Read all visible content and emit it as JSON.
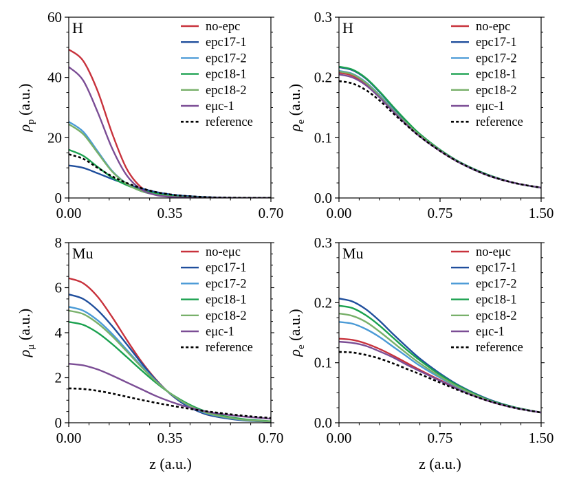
{
  "colors": {
    "no-epc": "#c8323c",
    "epc17-1": "#1f4e9c",
    "epc17-2": "#4a9ad6",
    "epc18-1": "#1aa14f",
    "epc18-2": "#78b06a",
    "emuc-1": "#7b4d95",
    "reference": "#000000"
  },
  "xlabel": "z (a.u.)",
  "chart_data": [
    {
      "type": "line",
      "panel_label": "H",
      "ylabel": "ρ",
      "ylabel_sub": "p",
      "ylabel_unit": " (a.u.)",
      "xlim": [
        0,
        0.7
      ],
      "ylim": [
        0,
        60
      ],
      "xticks": [
        "0.00",
        "0.35",
        "0.70"
      ],
      "yticks": [
        "0",
        "20",
        "40",
        "60"
      ],
      "series": [
        {
          "name": "no-epc",
          "color_key": "no-epc",
          "style": "solid",
          "x": [
            0,
            0.05,
            0.1,
            0.15,
            0.2,
            0.25,
            0.3,
            0.35,
            0.4,
            0.5,
            0.6,
            0.7
          ],
          "values": [
            49.3,
            45.5,
            35.5,
            21.5,
            9.8,
            3.6,
            1.2,
            0.5,
            0.2,
            0.05,
            0.02,
            0.01
          ]
        },
        {
          "name": "epc17-1",
          "color_key": "epc17-1",
          "style": "solid",
          "x": [
            0,
            0.05,
            0.1,
            0.15,
            0.2,
            0.25,
            0.3,
            0.35,
            0.4,
            0.5,
            0.6,
            0.7
          ],
          "values": [
            10.8,
            10.0,
            8.2,
            6.3,
            4.6,
            3.2,
            2.0,
            1.2,
            0.7,
            0.2,
            0.05,
            0.01
          ]
        },
        {
          "name": "epc17-2",
          "color_key": "epc17-2",
          "style": "solid",
          "x": [
            0,
            0.05,
            0.1,
            0.15,
            0.2,
            0.25,
            0.3,
            0.35,
            0.4,
            0.5,
            0.6,
            0.7
          ],
          "values": [
            25.3,
            22.0,
            15.5,
            9.0,
            4.8,
            2.3,
            1.1,
            0.5,
            0.2,
            0.05,
            0.02,
            0.01
          ]
        },
        {
          "name": "epc18-1",
          "color_key": "epc18-1",
          "style": "solid",
          "x": [
            0,
            0.05,
            0.1,
            0.15,
            0.2,
            0.25,
            0.3,
            0.35,
            0.4,
            0.5,
            0.6,
            0.7
          ],
          "values": [
            16.0,
            14.0,
            10.3,
            6.8,
            4.3,
            2.6,
            1.5,
            0.8,
            0.4,
            0.1,
            0.03,
            0.01
          ]
        },
        {
          "name": "epc18-2",
          "color_key": "epc18-2",
          "style": "solid",
          "x": [
            0,
            0.05,
            0.1,
            0.15,
            0.2,
            0.25,
            0.3,
            0.35,
            0.4,
            0.5,
            0.6,
            0.7
          ],
          "values": [
            24.5,
            21.2,
            15.0,
            8.8,
            4.7,
            2.3,
            1.1,
            0.5,
            0.2,
            0.05,
            0.02,
            0.01
          ]
        },
        {
          "name": "eμc-1",
          "color_key": "emuc-1",
          "style": "solid",
          "x": [
            0,
            0.05,
            0.1,
            0.15,
            0.2,
            0.25,
            0.3,
            0.35,
            0.4,
            0.5,
            0.6,
            0.7
          ],
          "values": [
            43.5,
            39.0,
            28.5,
            16.5,
            7.6,
            2.9,
            1.0,
            0.4,
            0.15,
            0.05,
            0.02,
            0.01
          ]
        },
        {
          "name": "reference",
          "color_key": "reference",
          "style": "dashed",
          "x": [
            0,
            0.05,
            0.1,
            0.15,
            0.2,
            0.25,
            0.3,
            0.35,
            0.4,
            0.5,
            0.6,
            0.7
          ],
          "values": [
            14.5,
            13.0,
            10.0,
            7.2,
            5.0,
            3.3,
            2.0,
            1.2,
            0.7,
            0.2,
            0.05,
            0.01
          ]
        }
      ]
    },
    {
      "type": "line",
      "panel_label": "H",
      "ylabel": "ρ",
      "ylabel_sub": "e",
      "ylabel_unit": " (a.u.)",
      "xlim": [
        0,
        1.5
      ],
      "ylim": [
        0,
        0.3
      ],
      "xticks": [
        "0.00",
        "0.75",
        "1.50"
      ],
      "yticks": [
        "0.0",
        "0.1",
        "0.2",
        "0.3"
      ],
      "series": [
        {
          "name": "no-epc",
          "color_key": "no-epc",
          "style": "solid",
          "x": [
            0,
            0.1,
            0.2,
            0.3,
            0.4,
            0.5,
            0.6,
            0.75,
            0.9,
            1.1,
            1.3,
            1.5
          ],
          "values": [
            0.208,
            0.203,
            0.189,
            0.168,
            0.145,
            0.123,
            0.103,
            0.078,
            0.058,
            0.038,
            0.025,
            0.017
          ]
        },
        {
          "name": "epc17-1",
          "color_key": "epc17-1",
          "style": "solid",
          "x": [
            0,
            0.1,
            0.2,
            0.3,
            0.4,
            0.5,
            0.6,
            0.75,
            0.9,
            1.1,
            1.3,
            1.5
          ],
          "values": [
            0.217,
            0.212,
            0.198,
            0.176,
            0.151,
            0.127,
            0.106,
            0.08,
            0.059,
            0.039,
            0.025,
            0.017
          ]
        },
        {
          "name": "epc17-2",
          "color_key": "epc17-2",
          "style": "solid",
          "x": [
            0,
            0.1,
            0.2,
            0.3,
            0.4,
            0.5,
            0.6,
            0.75,
            0.9,
            1.1,
            1.3,
            1.5
          ],
          "values": [
            0.211,
            0.206,
            0.192,
            0.171,
            0.147,
            0.124,
            0.104,
            0.079,
            0.058,
            0.038,
            0.025,
            0.017
          ]
        },
        {
          "name": "epc18-1",
          "color_key": "epc18-1",
          "style": "solid",
          "x": [
            0,
            0.1,
            0.2,
            0.3,
            0.4,
            0.5,
            0.6,
            0.75,
            0.9,
            1.1,
            1.3,
            1.5
          ],
          "values": [
            0.218,
            0.213,
            0.199,
            0.177,
            0.152,
            0.128,
            0.106,
            0.08,
            0.059,
            0.039,
            0.025,
            0.017
          ]
        },
        {
          "name": "epc18-2",
          "color_key": "epc18-2",
          "style": "solid",
          "x": [
            0,
            0.1,
            0.2,
            0.3,
            0.4,
            0.5,
            0.6,
            0.75,
            0.9,
            1.1,
            1.3,
            1.5
          ],
          "values": [
            0.21,
            0.205,
            0.191,
            0.17,
            0.146,
            0.124,
            0.104,
            0.079,
            0.058,
            0.038,
            0.025,
            0.017
          ]
        },
        {
          "name": "eμc-1",
          "color_key": "emuc-1",
          "style": "solid",
          "x": [
            0,
            0.1,
            0.2,
            0.3,
            0.4,
            0.5,
            0.6,
            0.75,
            0.9,
            1.1,
            1.3,
            1.5
          ],
          "values": [
            0.205,
            0.2,
            0.187,
            0.167,
            0.144,
            0.122,
            0.102,
            0.078,
            0.058,
            0.038,
            0.025,
            0.017
          ]
        },
        {
          "name": "reference",
          "color_key": "reference",
          "style": "dashed",
          "x": [
            0,
            0.1,
            0.2,
            0.3,
            0.4,
            0.5,
            0.6,
            0.75,
            0.9,
            1.1,
            1.3,
            1.5
          ],
          "values": [
            0.194,
            0.19,
            0.179,
            0.162,
            0.141,
            0.121,
            0.102,
            0.078,
            0.058,
            0.038,
            0.025,
            0.017
          ]
        }
      ]
    },
    {
      "type": "line",
      "panel_label": "Mu",
      "ylabel": "ρ",
      "ylabel_sub": "μ",
      "ylabel_unit": " (a.u.)",
      "xlim": [
        0,
        0.7
      ],
      "ylim": [
        0,
        8
      ],
      "xticks": [
        "0.00",
        "0.35",
        "0.70"
      ],
      "yticks": [
        "0",
        "2",
        "4",
        "6",
        "8"
      ],
      "series": [
        {
          "name": "no-eμc",
          "color_key": "no-epc",
          "style": "solid",
          "x": [
            0,
            0.05,
            0.1,
            0.15,
            0.2,
            0.25,
            0.3,
            0.35,
            0.4,
            0.45,
            0.5,
            0.6,
            0.7
          ],
          "values": [
            6.42,
            6.2,
            5.6,
            4.7,
            3.7,
            2.75,
            1.95,
            1.3,
            0.82,
            0.5,
            0.3,
            0.12,
            0.05
          ]
        },
        {
          "name": "epc17-1",
          "color_key": "epc17-1",
          "style": "solid",
          "x": [
            0,
            0.05,
            0.1,
            0.15,
            0.2,
            0.25,
            0.3,
            0.35,
            0.4,
            0.45,
            0.5,
            0.6,
            0.7
          ],
          "values": [
            5.7,
            5.5,
            5.0,
            4.3,
            3.5,
            2.68,
            1.92,
            1.3,
            0.82,
            0.5,
            0.3,
            0.11,
            0.05
          ]
        },
        {
          "name": "epc17-2",
          "color_key": "epc17-2",
          "style": "solid",
          "x": [
            0,
            0.05,
            0.1,
            0.15,
            0.2,
            0.25,
            0.3,
            0.35,
            0.4,
            0.45,
            0.5,
            0.6,
            0.7
          ],
          "values": [
            5.15,
            4.98,
            4.55,
            3.95,
            3.25,
            2.55,
            1.88,
            1.32,
            0.88,
            0.55,
            0.34,
            0.13,
            0.06
          ]
        },
        {
          "name": "epc18-1",
          "color_key": "epc18-1",
          "style": "solid",
          "x": [
            0,
            0.05,
            0.1,
            0.15,
            0.2,
            0.25,
            0.3,
            0.35,
            0.4,
            0.45,
            0.5,
            0.6,
            0.7
          ],
          "values": [
            4.48,
            4.35,
            4.0,
            3.5,
            2.93,
            2.35,
            1.8,
            1.32,
            0.93,
            0.62,
            0.4,
            0.17,
            0.07
          ]
        },
        {
          "name": "epc18-2",
          "color_key": "epc18-2",
          "style": "solid",
          "x": [
            0,
            0.05,
            0.1,
            0.15,
            0.2,
            0.25,
            0.3,
            0.35,
            0.4,
            0.45,
            0.5,
            0.6,
            0.7
          ],
          "values": [
            4.98,
            4.83,
            4.42,
            3.85,
            3.18,
            2.5,
            1.86,
            1.32,
            0.89,
            0.57,
            0.36,
            0.14,
            0.06
          ]
        },
        {
          "name": "eμc-1",
          "color_key": "emuc-1",
          "style": "solid",
          "x": [
            0,
            0.05,
            0.1,
            0.15,
            0.2,
            0.25,
            0.3,
            0.35,
            0.4,
            0.45,
            0.5,
            0.6,
            0.7
          ],
          "values": [
            2.62,
            2.55,
            2.37,
            2.1,
            1.8,
            1.5,
            1.2,
            0.95,
            0.74,
            0.57,
            0.44,
            0.28,
            0.18
          ]
        },
        {
          "name": "reference",
          "color_key": "reference",
          "style": "dashed",
          "x": [
            0,
            0.05,
            0.1,
            0.15,
            0.2,
            0.25,
            0.3,
            0.35,
            0.4,
            0.45,
            0.5,
            0.6,
            0.7
          ],
          "values": [
            1.53,
            1.5,
            1.42,
            1.3,
            1.16,
            1.02,
            0.89,
            0.77,
            0.66,
            0.56,
            0.47,
            0.32,
            0.21
          ]
        }
      ]
    },
    {
      "type": "line",
      "panel_label": "Mu",
      "ylabel": "ρ",
      "ylabel_sub": "e",
      "ylabel_unit": " (a.u.)",
      "xlim": [
        0,
        1.5
      ],
      "ylim": [
        0,
        0.3
      ],
      "xticks": [
        "0.00",
        "0.75",
        "1.50"
      ],
      "yticks": [
        "0.0",
        "0.1",
        "0.2",
        "0.3"
      ],
      "series": [
        {
          "name": "no-eμc",
          "color_key": "no-epc",
          "style": "solid",
          "x": [
            0,
            0.1,
            0.2,
            0.3,
            0.4,
            0.5,
            0.6,
            0.75,
            0.9,
            1.1,
            1.3,
            1.5
          ],
          "values": [
            0.14,
            0.138,
            0.132,
            0.123,
            0.112,
            0.1,
            0.088,
            0.071,
            0.055,
            0.037,
            0.025,
            0.017
          ]
        },
        {
          "name": "epc17-1",
          "color_key": "epc17-1",
          "style": "solid",
          "x": [
            0,
            0.1,
            0.2,
            0.3,
            0.4,
            0.5,
            0.6,
            0.75,
            0.9,
            1.1,
            1.3,
            1.5
          ],
          "values": [
            0.207,
            0.202,
            0.189,
            0.17,
            0.148,
            0.127,
            0.107,
            0.082,
            0.061,
            0.04,
            0.026,
            0.017
          ]
        },
        {
          "name": "epc17-2",
          "color_key": "epc17-2",
          "style": "solid",
          "x": [
            0,
            0.1,
            0.2,
            0.3,
            0.4,
            0.5,
            0.6,
            0.75,
            0.9,
            1.1,
            1.3,
            1.5
          ],
          "values": [
            0.168,
            0.165,
            0.156,
            0.143,
            0.127,
            0.111,
            0.095,
            0.075,
            0.057,
            0.038,
            0.025,
            0.017
          ]
        },
        {
          "name": "epc18-1",
          "color_key": "epc18-1",
          "style": "solid",
          "x": [
            0,
            0.1,
            0.2,
            0.3,
            0.4,
            0.5,
            0.6,
            0.75,
            0.9,
            1.1,
            1.3,
            1.5
          ],
          "values": [
            0.195,
            0.191,
            0.179,
            0.162,
            0.142,
            0.122,
            0.104,
            0.08,
            0.06,
            0.039,
            0.026,
            0.017
          ]
        },
        {
          "name": "epc18-2",
          "color_key": "epc18-2",
          "style": "solid",
          "x": [
            0,
            0.1,
            0.2,
            0.3,
            0.4,
            0.5,
            0.6,
            0.75,
            0.9,
            1.1,
            1.3,
            1.5
          ],
          "values": [
            0.182,
            0.178,
            0.168,
            0.152,
            0.134,
            0.116,
            0.099,
            0.077,
            0.058,
            0.038,
            0.025,
            0.017
          ]
        },
        {
          "name": "eμc-1",
          "color_key": "emuc-1",
          "style": "solid",
          "x": [
            0,
            0.1,
            0.2,
            0.3,
            0.4,
            0.5,
            0.6,
            0.75,
            0.9,
            1.1,
            1.3,
            1.5
          ],
          "values": [
            0.135,
            0.133,
            0.128,
            0.119,
            0.109,
            0.097,
            0.086,
            0.07,
            0.054,
            0.037,
            0.025,
            0.017
          ]
        },
        {
          "name": "reference",
          "color_key": "reference",
          "style": "dashed",
          "x": [
            0,
            0.1,
            0.2,
            0.3,
            0.4,
            0.5,
            0.6,
            0.75,
            0.9,
            1.1,
            1.3,
            1.5
          ],
          "values": [
            0.118,
            0.117,
            0.113,
            0.107,
            0.099,
            0.09,
            0.081,
            0.067,
            0.053,
            0.037,
            0.025,
            0.017
          ]
        }
      ]
    }
  ]
}
